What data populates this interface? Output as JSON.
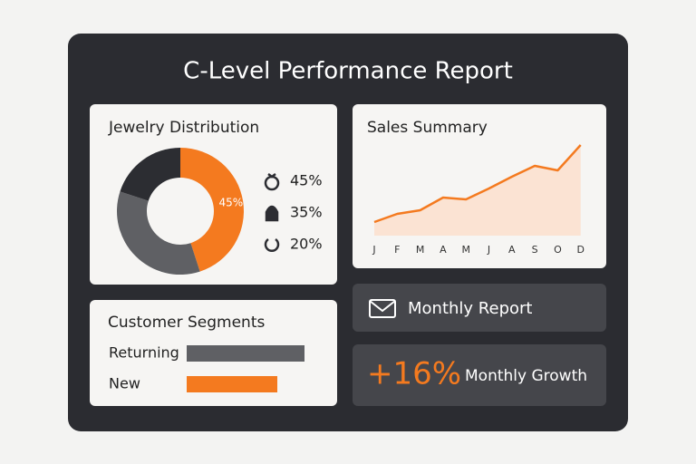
{
  "title": "C-Level Performance Report",
  "chart_data": [
    {
      "type": "pie",
      "title": "Jewelry Distribution",
      "values": [
        45,
        35,
        20
      ],
      "value_labels": [
        "45%",
        "35%",
        "20%"
      ],
      "colors": [
        "#f47a1f",
        "#5f6064",
        "#2c2d32"
      ],
      "donut": true
    },
    {
      "type": "line",
      "title": "Sales Summary",
      "categories": [
        "J",
        "F",
        "M",
        "A",
        "M",
        "J",
        "A",
        "S",
        "O",
        "D"
      ],
      "values": [
        15,
        24,
        28,
        42,
        40,
        52,
        65,
        77,
        72,
        100
      ],
      "ylim": [
        0,
        110
      ],
      "color": "#f47a1f",
      "area_color": "#fbe3d3"
    },
    {
      "type": "hbar",
      "title": "Customer Segments",
      "categories": [
        "Returning",
        "New"
      ],
      "values": [
        65,
        50
      ],
      "xlim": [
        0,
        100
      ],
      "colors": [
        "#5f6064",
        "#f47a1f"
      ]
    }
  ],
  "cards": [
    {
      "label": "Monthly Report"
    },
    {
      "value": "+16%",
      "label": "Monthly Growth"
    }
  ]
}
